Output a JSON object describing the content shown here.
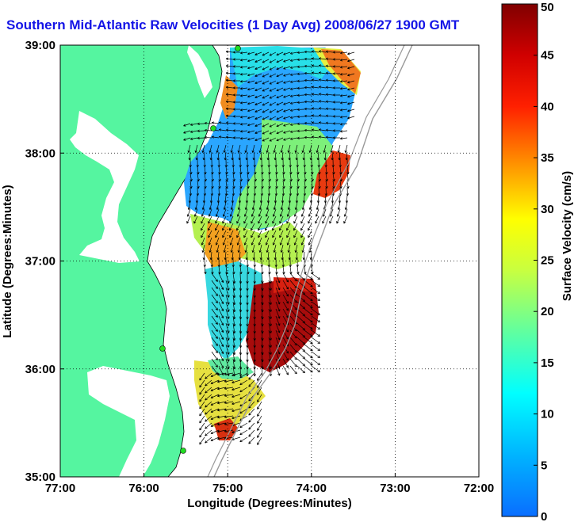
{
  "title": "Southern Mid-Atlantic Raw Velocities (1 Day Avg) 2008/06/27 1900 GMT",
  "chart_data": {
    "type": "heatmap",
    "title": "Southern Mid-Atlantic Raw Velocities (1 Day Avg) 2008/06/27 1900 GMT",
    "xlabel": "Longitude (Degrees:Minutes)",
    "ylabel": "Latitude (Degrees:Minutes)",
    "x_ticks": [
      "77:00",
      "76:00",
      "75:00",
      "74:00",
      "73:00",
      "72:00"
    ],
    "y_ticks": [
      "35:00",
      "36:00",
      "37:00",
      "38:00",
      "39:00"
    ],
    "xlim": [
      -77,
      -72
    ],
    "ylim": [
      35,
      39
    ],
    "grid": true,
    "colorbar": {
      "label": "Surface Velocity (cm/s)",
      "range": [
        0,
        50
      ],
      "ticks": [
        0,
        5,
        10,
        15,
        20,
        25,
        30,
        35,
        40,
        45,
        50
      ],
      "colors": [
        "#0000ff",
        "#00a0ff",
        "#00ffff",
        "#80ff80",
        "#ffff00",
        "#ff8000",
        "#ff0000",
        "#800000"
      ]
    },
    "land_color": "#55f5a0"
  }
}
